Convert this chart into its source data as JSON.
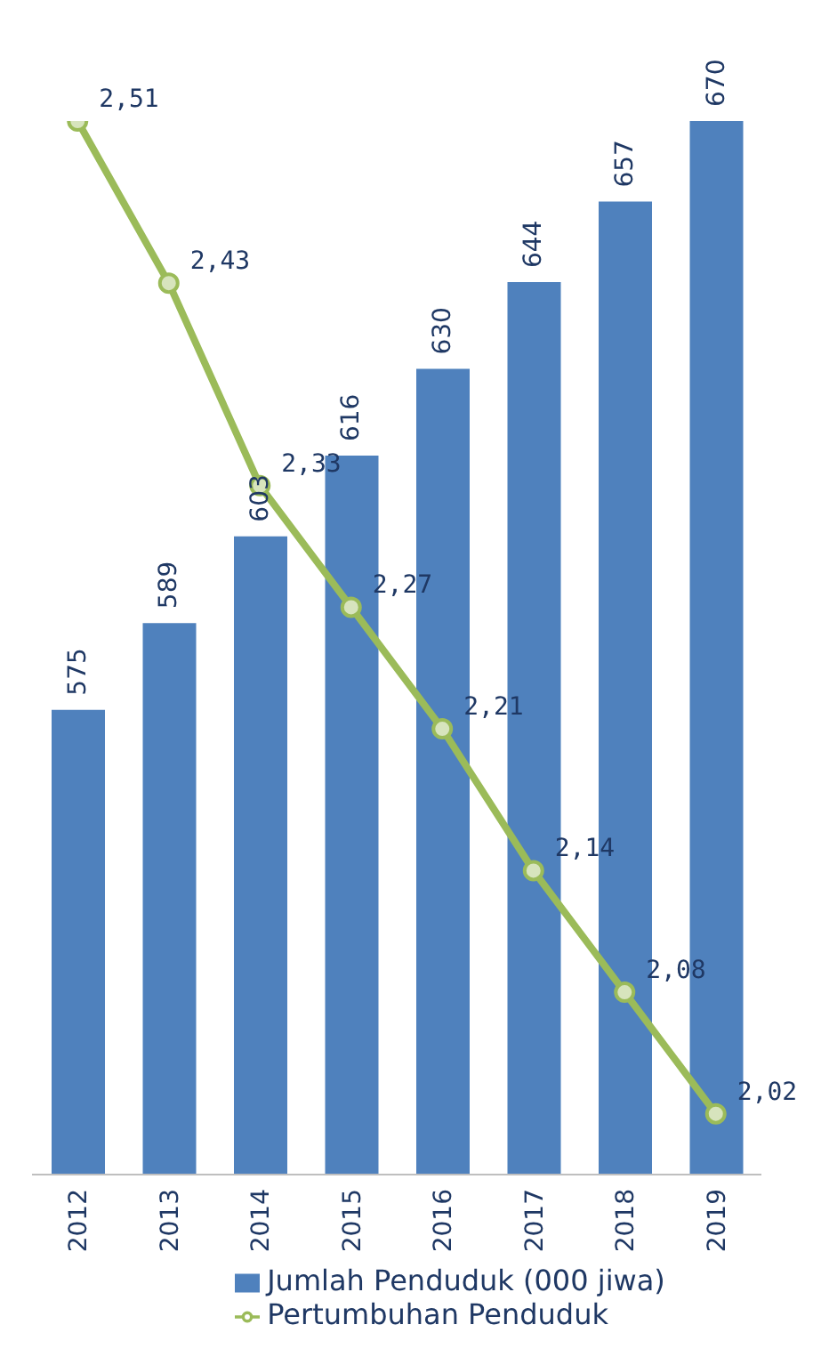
{
  "chart_data": {
    "type": "bar",
    "categories": [
      "2012",
      "2013",
      "2014",
      "2015",
      "2016",
      "2017",
      "2018",
      "2019"
    ],
    "series": [
      {
        "name": "Jumlah Penduduk (000 jiwa)",
        "color": "#4f81bd",
        "values": [
          575,
          589,
          603,
          616,
          630,
          644,
          657,
          670
        ]
      },
      {
        "name": "Pertumbuhan Penduduk",
        "type": "line",
        "axis": "y2",
        "color": "#9bbb59",
        "values": [
          2.51,
          2.43,
          2.33,
          2.27,
          2.21,
          2.14,
          2.08,
          2.02
        ],
        "value_labels": [
          "2,51",
          "2,43",
          "2,33",
          "2,27",
          "2,21",
          "2,14",
          "2,08",
          "2,02"
        ]
      }
    ],
    "ylim": [
      500,
      670
    ],
    "y2lim": [
      1.99,
      2.51
    ],
    "tick_labels": "x",
    "data_labels": true,
    "grid": false,
    "legend": "bottom",
    "marker": "circle"
  }
}
